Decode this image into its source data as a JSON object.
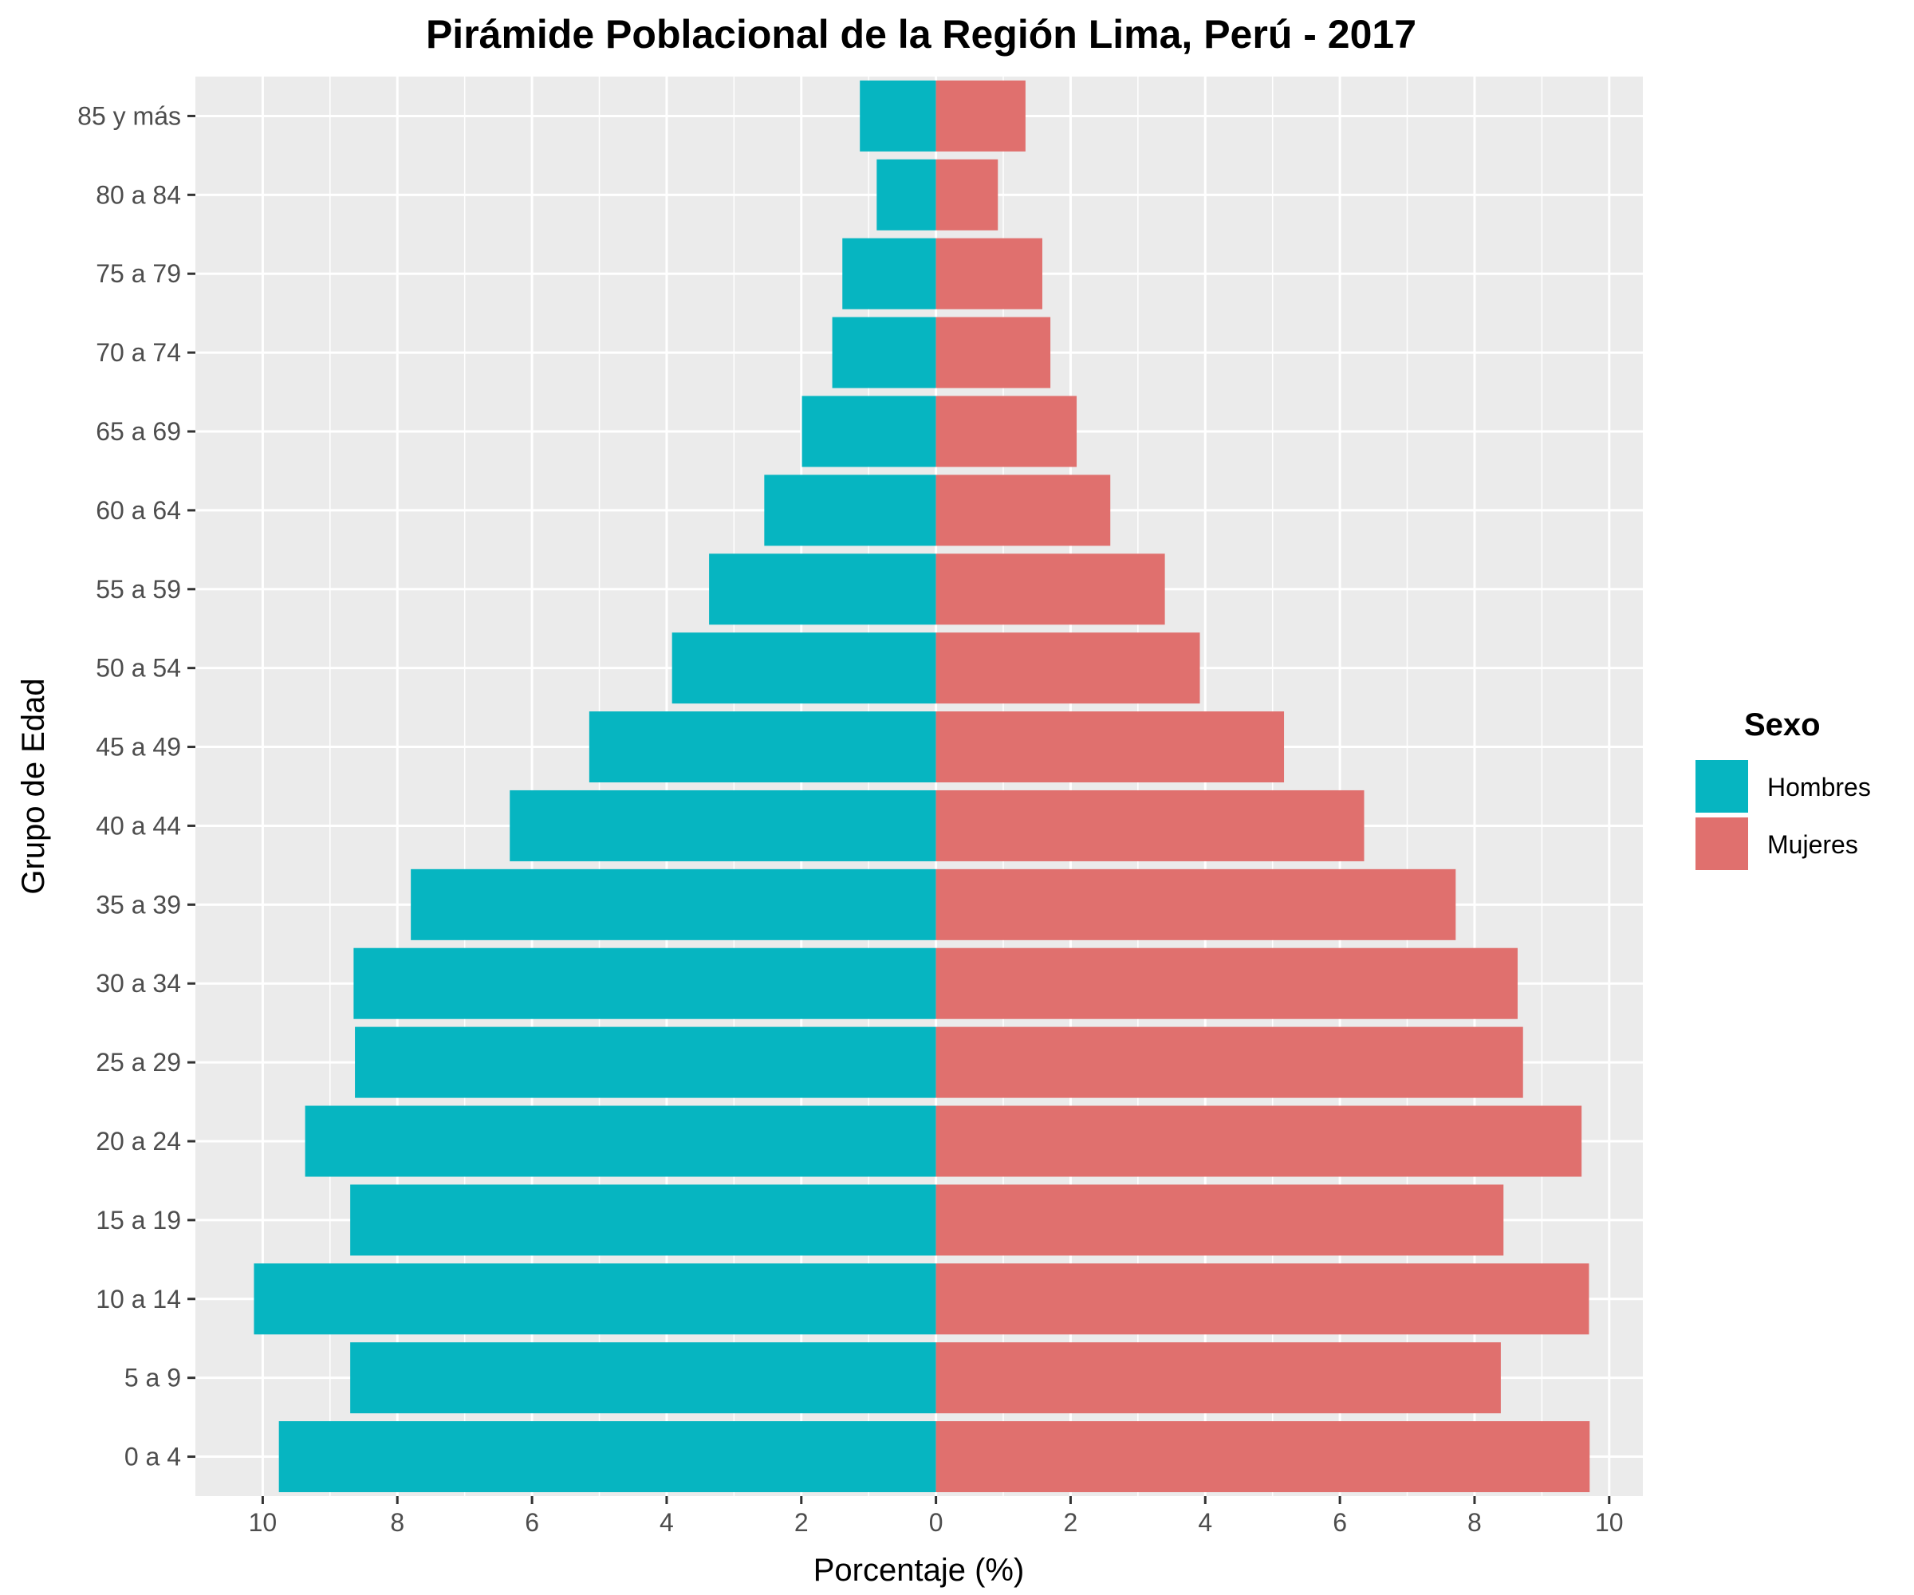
{
  "chart_data": {
    "type": "bar",
    "orientation": "horizontal",
    "layout": "population-pyramid",
    "title": "Pirámide Poblacional de la Región Lima, Perú - 2017",
    "xlabel": "Porcentaje (%)",
    "ylabel": "Grupo de Edad",
    "xlim": [
      -11,
      10.5
    ],
    "x_ticks": [
      -10,
      -8,
      -6,
      -4,
      -2,
      0,
      2,
      4,
      6,
      8,
      10
    ],
    "x_tick_labels": [
      "10",
      "8",
      "6",
      "4",
      "2",
      "0",
      "2",
      "4",
      "6",
      "8",
      "10"
    ],
    "grid": true,
    "categories": [
      "0 a 4",
      "5 a 9",
      "10 a 14",
      "15 a 19",
      "20 a 24",
      "25 a 29",
      "30 a 34",
      "35 a 39",
      "40 a 44",
      "45 a 49",
      "50 a 54",
      "55 a 59",
      "60 a 64",
      "65 a 69",
      "70 a 74",
      "75 a 79",
      "80 a 84",
      "85 y más"
    ],
    "series": [
      {
        "name": "Hombres",
        "color": "#06b5c1",
        "values": [
          9.76,
          8.7,
          10.13,
          8.7,
          9.37,
          8.63,
          8.65,
          7.8,
          6.33,
          5.15,
          3.92,
          3.37,
          2.55,
          1.99,
          1.54,
          1.39,
          0.88,
          1.13
        ]
      },
      {
        "name": "Mujeres",
        "color": "#e0706e",
        "values": [
          9.71,
          8.39,
          9.7,
          8.43,
          9.59,
          8.72,
          8.64,
          7.72,
          6.36,
          5.17,
          3.92,
          3.4,
          2.59,
          2.09,
          1.7,
          1.58,
          0.92,
          1.33
        ]
      }
    ],
    "legend": {
      "title": "Sexo",
      "placement": "right"
    }
  }
}
